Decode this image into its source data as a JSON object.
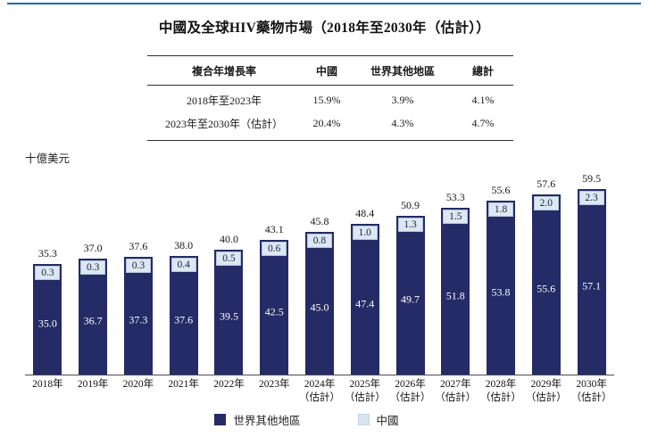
{
  "page": {
    "title": "中國及全球HIV藥物市場（2018年至2030年（估計））"
  },
  "cagr_table": {
    "headers": [
      "複合年增長率",
      "中國",
      "世界其他地區",
      "總計"
    ],
    "rows": [
      [
        "2018年至2023年",
        "15.9%",
        "3.9%",
        "4.1%"
      ],
      [
        "2023年至2030年（估計）",
        "20.4%",
        "4.3%",
        "4.7%"
      ]
    ]
  },
  "chart": {
    "unit_label": "十億美元",
    "colors": {
      "bar": "#242b66",
      "china_box_bg": "#dce7f2",
      "china_box_border": "#b3c5da",
      "china_legend": "#d9e4f0",
      "axis": "#4d4d55",
      "top_rule": "#1b6dad"
    },
    "x_labels": [
      {
        "year": "2018年",
        "note": ""
      },
      {
        "year": "2019年",
        "note": ""
      },
      {
        "year": "2020年",
        "note": ""
      },
      {
        "year": "2021年",
        "note": ""
      },
      {
        "year": "2022年",
        "note": ""
      },
      {
        "year": "2023年",
        "note": ""
      },
      {
        "year": "2024年",
        "note": "（估計）"
      },
      {
        "year": "2025年",
        "note": "（估計）"
      },
      {
        "year": "2026年",
        "note": "（估計）"
      },
      {
        "year": "2027年",
        "note": "（估計）"
      },
      {
        "year": "2028年",
        "note": "（估計）"
      },
      {
        "year": "2029年",
        "note": "（估計）"
      },
      {
        "year": "2030年",
        "note": "（估計）"
      }
    ],
    "legend": [
      {
        "label": "世界其他地區",
        "color": "#242b66"
      },
      {
        "label": "中國",
        "color": "#d9e4f0"
      }
    ]
  },
  "chart_data": {
    "type": "bar",
    "stacked": true,
    "title": "中國及全球HIV藥物市場（2018年至2030年（估計））",
    "ylabel": "十億美元",
    "xlabel": "",
    "ylim": [
      0,
      62
    ],
    "grid": false,
    "legend_position": "bottom",
    "categories": [
      "2018年",
      "2019年",
      "2020年",
      "2021年",
      "2022年",
      "2023年",
      "2024年（估計）",
      "2025年（估計）",
      "2026年（估計）",
      "2027年（估計）",
      "2028年（估計）",
      "2029年（估計）",
      "2030年（估計）"
    ],
    "series": [
      {
        "name": "世界其他地區",
        "values": [
          35.0,
          36.7,
          37.3,
          37.6,
          39.5,
          42.5,
          45.0,
          47.4,
          49.7,
          51.8,
          53.8,
          55.6,
          57.1
        ]
      },
      {
        "name": "中國",
        "values": [
          0.3,
          0.3,
          0.3,
          0.4,
          0.5,
          0.6,
          0.8,
          1.0,
          1.3,
          1.5,
          1.8,
          2.0,
          2.3
        ]
      }
    ],
    "totals": [
      35.3,
      37.0,
      37.6,
      38.0,
      40.0,
      43.1,
      45.8,
      48.4,
      50.9,
      53.3,
      55.6,
      57.6,
      59.5
    ],
    "table": {
      "headers": [
        "複合年增長率",
        "中國",
        "世界其他地區",
        "總計"
      ],
      "rows": [
        [
          "2018年至2023年",
          "15.9%",
          "3.9%",
          "4.1%"
        ],
        [
          "2023年至2030年（估計）",
          "20.4%",
          "4.3%",
          "4.7%"
        ]
      ]
    }
  }
}
